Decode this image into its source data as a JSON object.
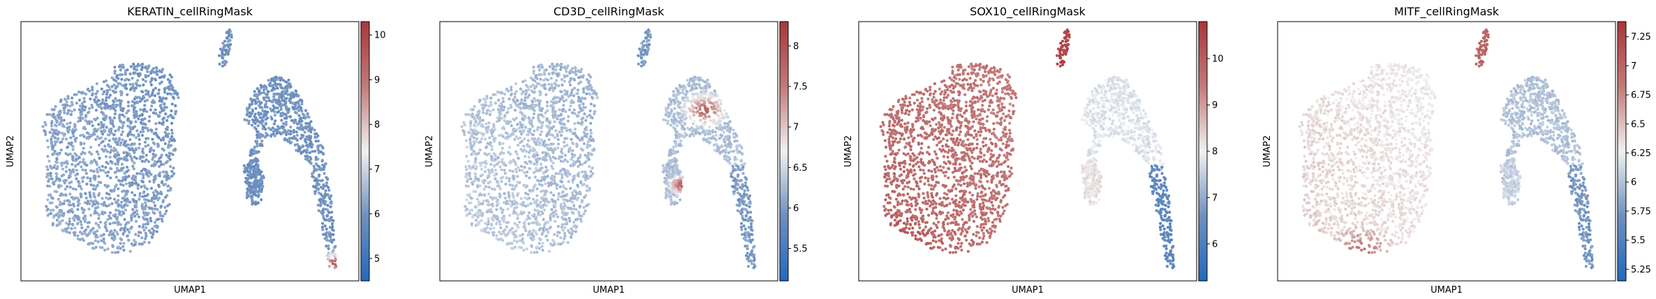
{
  "chart_data": [
    {
      "type": "scatter",
      "title": "KERATIN_cellRingMask",
      "xlabel": "UMAP1",
      "ylabel": "UMAP2",
      "colormap": "vlag",
      "colorbar": {
        "ticks": [
          5,
          6,
          7,
          8,
          9,
          10
        ],
        "range": [
          4.5,
          10.3
        ]
      },
      "region_values": {
        "big": 6.2,
        "islet": 6.0,
        "right": 6.0,
        "rightlow": 6.0,
        "left": 5.9
      },
      "hotspots": [
        {
          "x": 0.93,
          "y": 0.93,
          "r": 0.05,
          "value": 10.0
        }
      ]
    },
    {
      "type": "scatter",
      "title": "CD3D_cellRingMask",
      "xlabel": "UMAP1",
      "ylabel": "UMAP2",
      "colormap": "vlag",
      "colorbar": {
        "ticks": [
          5.5,
          6.0,
          6.5,
          7.0,
          7.5,
          8.0
        ],
        "range": [
          5.1,
          8.3
        ]
      },
      "region_values": {
        "big": 6.3,
        "islet": 6.0,
        "right": 6.3,
        "rightlow": 6.0,
        "left": 6.3
      },
      "hotspots": [
        {
          "x": 0.785,
          "y": 0.34,
          "r": 0.075,
          "value": 7.9
        },
        {
          "x": 0.715,
          "y": 0.63,
          "r": 0.045,
          "value": 8.0
        }
      ]
    },
    {
      "type": "scatter",
      "title": "SOX10_cellRingMask",
      "xlabel": "UMAP1",
      "ylabel": "UMAP2",
      "colormap": "vlag",
      "colorbar": {
        "ticks": [
          6,
          7,
          8,
          9,
          10
        ],
        "range": [
          5.2,
          10.8
        ]
      },
      "region_values": {
        "big": 9.6,
        "islet": 10.5,
        "right": 7.8,
        "rightlow": 6.3,
        "left": 8.2
      },
      "hotspots": [
        {
          "x": 0.12,
          "y": 0.85,
          "r": 0.12,
          "value": 10.3
        }
      ]
    },
    {
      "type": "scatter",
      "title": "MITF_cellRingMask",
      "xlabel": "UMAP1",
      "ylabel": "UMAP2",
      "colormap": "vlag",
      "colorbar": {
        "ticks": [
          5.25,
          5.5,
          5.75,
          6.0,
          6.25,
          6.5,
          6.75,
          7.0,
          7.25
        ],
        "range": [
          5.15,
          7.38
        ]
      },
      "region_values": {
        "big": 6.35,
        "islet": 7.0,
        "right": 6.0,
        "rightlow": 5.75,
        "left": 6.1
      },
      "hotspots": [
        {
          "x": 0.25,
          "y": 0.88,
          "r": 0.1,
          "value": 6.9
        }
      ]
    }
  ]
}
